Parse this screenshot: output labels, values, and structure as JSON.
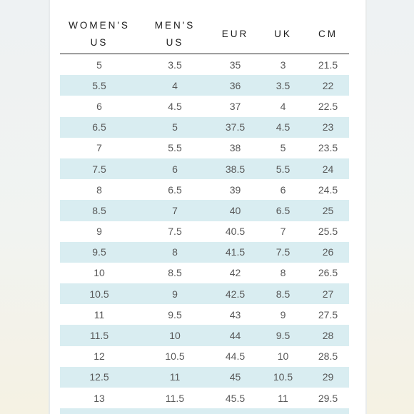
{
  "table": {
    "headers": [
      [
        "WOMEN'S",
        "US"
      ],
      [
        "MEN'S",
        "US"
      ],
      [
        "EUR"
      ],
      [
        "UK"
      ],
      [
        "CM"
      ]
    ],
    "rows": [
      [
        "5",
        "3.5",
        "35",
        "3",
        "21.5"
      ],
      [
        "5.5",
        "4",
        "36",
        "3.5",
        "22"
      ],
      [
        "6",
        "4.5",
        "37",
        "4",
        "22.5"
      ],
      [
        "6.5",
        "5",
        "37.5",
        "4.5",
        "23"
      ],
      [
        "7",
        "5.5",
        "38",
        "5",
        "23.5"
      ],
      [
        "7.5",
        "6",
        "38.5",
        "5.5",
        "24"
      ],
      [
        "8",
        "6.5",
        "39",
        "6",
        "24.5"
      ],
      [
        "8.5",
        "7",
        "40",
        "6.5",
        "25"
      ],
      [
        "9",
        "7.5",
        "40.5",
        "7",
        "25.5"
      ],
      [
        "9.5",
        "8",
        "41.5",
        "7.5",
        "26"
      ],
      [
        "10",
        "8.5",
        "42",
        "8",
        "26.5"
      ],
      [
        "10.5",
        "9",
        "42.5",
        "8.5",
        "27"
      ],
      [
        "11",
        "9.5",
        "43",
        "9",
        "27.5"
      ],
      [
        "11.5",
        "10",
        "44",
        "9.5",
        "28"
      ],
      [
        "12",
        "10.5",
        "44.5",
        "10",
        "28.5"
      ],
      [
        "12.5",
        "11",
        "45",
        "10.5",
        "29"
      ],
      [
        "13",
        "11.5",
        "45.5",
        "11",
        "29.5"
      ],
      [
        "",
        "",
        "",
        "",
        ""
      ]
    ]
  },
  "colors": {
    "stripe": "#d9edf1",
    "header_text": "#1c1c1c",
    "cell_text": "#585858",
    "panel": "#ffffff"
  }
}
